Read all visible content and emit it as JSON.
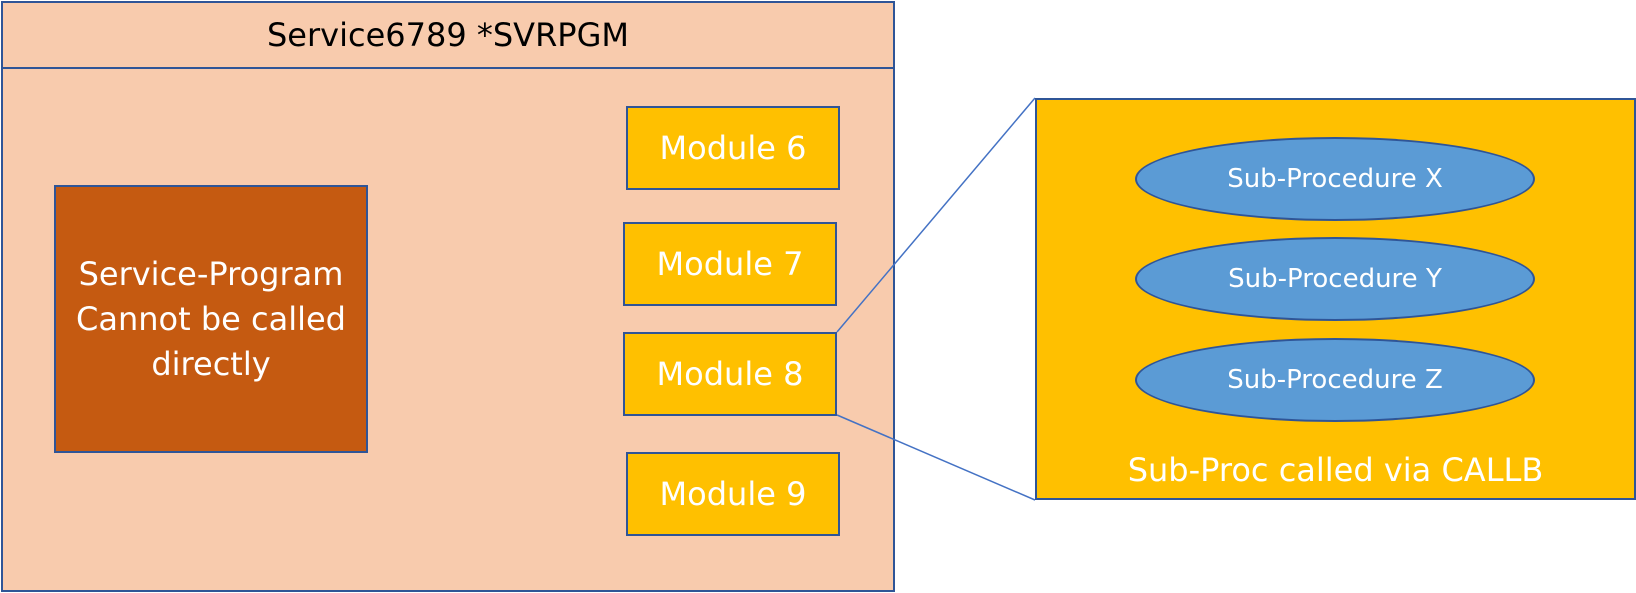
{
  "service": {
    "title": "Service6789 *SVRPGM",
    "program_lines": [
      "Service-Program",
      "Cannot be called",
      "directly"
    ],
    "modules": [
      "Module 6",
      "Module 7",
      "Module 8",
      "Module 9"
    ]
  },
  "detail": {
    "sub_procedures": [
      "Sub-Procedure X",
      "Sub-Procedure Y",
      "Sub-Procedure Z"
    ],
    "caption": "Sub-Proc called via CALLB"
  },
  "colors": {
    "container_fill": "#f8cbad",
    "program_fill": "#c55a11",
    "module_fill": "#ffc000",
    "subproc_fill": "#5b9bd5",
    "outline": "#2f5597"
  }
}
